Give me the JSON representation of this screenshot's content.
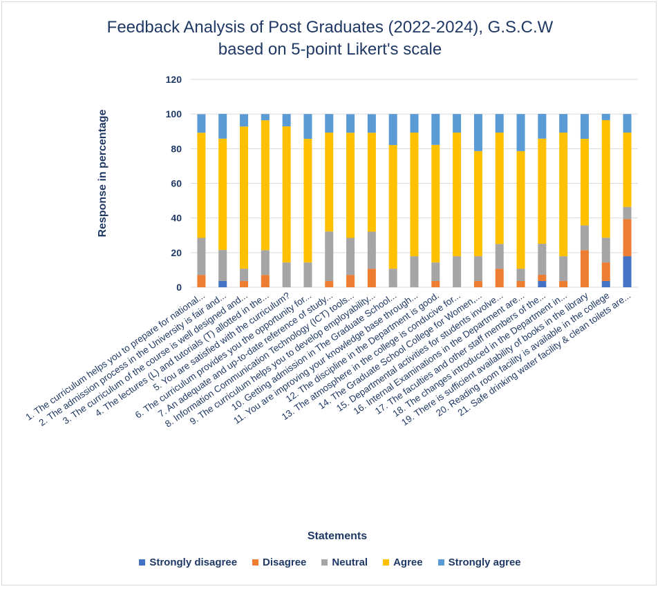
{
  "chart_data": {
    "type": "bar",
    "stacked": true,
    "title": [
      "Feedback Analysis of Post Graduates (2022-2024), G.S.C.W",
      "based on 5-point Likert's scale"
    ],
    "xlabel": "Statements",
    "ylabel": "Response in percentage",
    "ylim": [
      0,
      120
    ],
    "yticks": [
      0,
      20,
      40,
      60,
      80,
      100,
      120
    ],
    "grid": true,
    "legend_position": "bottom",
    "categories": [
      "1. The curriculum helps you to prepare for national...",
      "2. The admission process in the University is fair and...",
      "3. The curriculum of the course is well designed and...",
      "4. The lectures (L) and tutorials (T) allotted in the...",
      "5. You are satisfied with the curriculum?",
      "6. The curriculum provides you the opportunity for...",
      "7. An adequate and up-to-date reference of study...",
      "8. Information Communication Technology (ICT) tools...",
      "9. The curriculum helps you to develop employability...",
      "10. Getting admission in The Graduate School...",
      "11. You are improving your knowledge base through...",
      "12. The discipline in the Department is good.",
      "13. The atmosphere in the college  is conducive for...",
      "14. The Graduate School College for Women,...",
      "15. Departmental activities for students involve...",
      "16. Internal Examinations in the Department are...",
      "17. The faculties and other staff members of  the...",
      "18. The changes introduced in the Department in...",
      "19. There is sufficient availability of books in the library",
      "20. Reading room facility is available in the college",
      "21. Safe drinking water facility & clean toilets are..."
    ],
    "series": [
      {
        "name": "Strongly disagree",
        "color": "#4472c4",
        "values": [
          0,
          3.6,
          0,
          0,
          0,
          0,
          0,
          0,
          0,
          0,
          0,
          0,
          0,
          0,
          0,
          0,
          3.6,
          0,
          0,
          3.6,
          17.9
        ]
      },
      {
        "name": "Disagree",
        "color": "#ed7d31",
        "values": [
          7.1,
          0,
          3.6,
          7.1,
          0,
          0,
          3.6,
          7.1,
          10.7,
          0,
          0,
          3.6,
          0,
          3.6,
          10.7,
          3.6,
          3.6,
          3.6,
          21.4,
          10.7,
          21.4
        ]
      },
      {
        "name": "Neutral",
        "color": "#a5a5a5",
        "values": [
          21.4,
          17.9,
          7.1,
          14.3,
          14.3,
          14.3,
          28.6,
          21.4,
          21.4,
          10.7,
          17.9,
          10.7,
          17.9,
          14.3,
          14.3,
          7.1,
          17.9,
          14.3,
          14.3,
          14.3,
          7.1
        ]
      },
      {
        "name": "Agree",
        "color": "#ffc000",
        "values": [
          60.7,
          64.3,
          82.1,
          75.0,
          78.6,
          71.4,
          57.1,
          60.7,
          57.1,
          71.4,
          71.4,
          67.9,
          71.4,
          60.7,
          64.3,
          67.9,
          60.7,
          71.4,
          50.0,
          67.9,
          42.9
        ]
      },
      {
        "name": "Strongly agree",
        "color": "#5b9bd5",
        "values": [
          10.7,
          14.3,
          7.1,
          3.6,
          7.1,
          14.3,
          10.7,
          10.7,
          10.7,
          17.9,
          10.7,
          17.9,
          10.7,
          21.4,
          10.7,
          21.4,
          14.3,
          10.7,
          14.3,
          3.6,
          10.7
        ]
      }
    ]
  }
}
